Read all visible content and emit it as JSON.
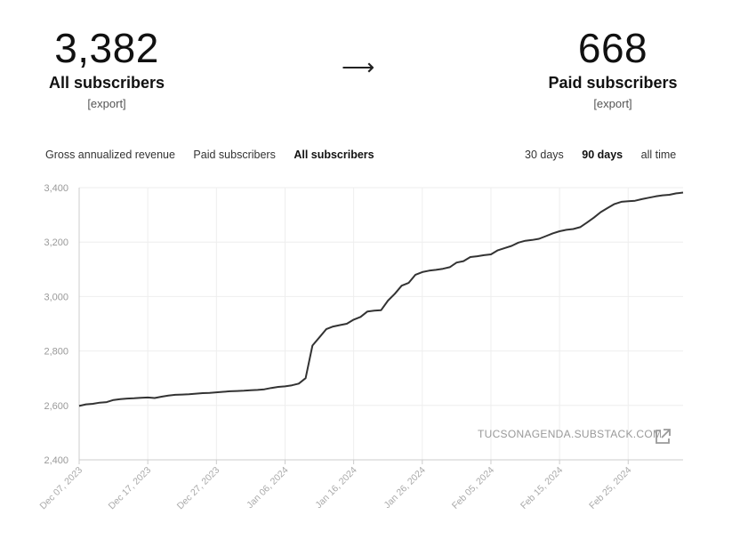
{
  "summary": {
    "all_count": "3,382",
    "all_label": "All subscribers",
    "all_export": "[export]",
    "arrow": "⟶",
    "paid_count": "668",
    "paid_label": "Paid subscribers",
    "paid_export": "[export]"
  },
  "metric_tabs": [
    "Gross annualized revenue",
    "Paid subscribers",
    "All subscribers"
  ],
  "metric_active": "All subscribers",
  "range_tabs": [
    "30 days",
    "90 days",
    "all time"
  ],
  "range_active": "90 days",
  "watermark": "TUCSONAGENDA.SUBSTACK.COM",
  "colors": {
    "line": "#333333",
    "grid": "#eeeeee",
    "axis": "#cccccc"
  },
  "icons": {
    "external": "external-link-icon"
  },
  "chart_data": {
    "type": "line",
    "ylim": [
      2400,
      3400
    ],
    "yticks": [
      "2,400",
      "2,600",
      "2,800",
      "3,000",
      "3,200",
      "3,400"
    ],
    "ytick_values": [
      2400,
      2600,
      2800,
      3000,
      3200,
      3400
    ],
    "xtick_labels": [
      "Dec 07, 2023",
      "Dec 17, 2023",
      "Dec 27, 2023",
      "Jan 06, 2024",
      "Jan 16, 2024",
      "Jan 26, 2024",
      "Feb 05, 2024",
      "Feb 15, 2024",
      "Feb 25, 2024"
    ],
    "xtick_offsets": [
      0,
      10,
      20,
      30,
      40,
      50,
      60,
      70,
      80
    ],
    "x_range": [
      0,
      88
    ],
    "grid": true,
    "series": [
      {
        "x": [
          0,
          1,
          2,
          3,
          4,
          5,
          6,
          7,
          8,
          9,
          10,
          11,
          12,
          13,
          14,
          15,
          16,
          17,
          18,
          19,
          20,
          21,
          22,
          23,
          24,
          25,
          26,
          27,
          28,
          29,
          30,
          31,
          32,
          33,
          34,
          35,
          36,
          37,
          38,
          39,
          40,
          41,
          42,
          43,
          44,
          45,
          46,
          47,
          48,
          49,
          50,
          51,
          52,
          53,
          54,
          55,
          56,
          57,
          58,
          59,
          60,
          61,
          62,
          63,
          64,
          65,
          66,
          67,
          68,
          69,
          70,
          71,
          72,
          73,
          74,
          75,
          76,
          77,
          78,
          79,
          80,
          81,
          82,
          83,
          84,
          85,
          86,
          87,
          88
        ],
        "values": [
          2598,
          2604,
          2606,
          2610,
          2612,
          2620,
          2623,
          2625,
          2626,
          2628,
          2629,
          2627,
          2632,
          2636,
          2639,
          2640,
          2641,
          2643,
          2645,
          2646,
          2648,
          2650,
          2652,
          2653,
          2654,
          2656,
          2657,
          2659,
          2664,
          2668,
          2670,
          2674,
          2680,
          2700,
          2820,
          2850,
          2880,
          2890,
          2895,
          2900,
          2915,
          2925,
          2945,
          2948,
          2950,
          2985,
          3010,
          3040,
          3050,
          3080,
          3090,
          3095,
          3098,
          3102,
          3108,
          3125,
          3130,
          3145,
          3148,
          3152,
          3155,
          3170,
          3178,
          3186,
          3198,
          3205,
          3208,
          3212,
          3222,
          3232,
          3240,
          3245,
          3248,
          3255,
          3272,
          3290,
          3310,
          3325,
          3340,
          3348,
          3350,
          3352,
          3358,
          3363,
          3368,
          3372,
          3374,
          3379,
          3382
        ]
      }
    ]
  }
}
